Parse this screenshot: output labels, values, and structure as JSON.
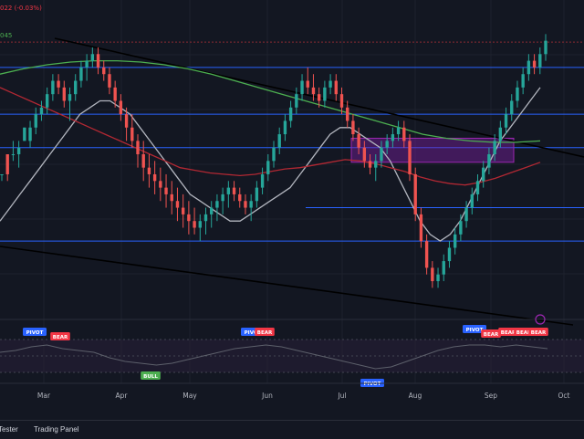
{
  "colors": {
    "background": "#131722",
    "up": "#26a69a",
    "down": "#ef5350",
    "ma_fast": "#b2b5be",
    "ma_mid": "#b22833",
    "ma_slow": "#4caf50",
    "hline": "#2962ff",
    "trendline": "#000000",
    "zone": "#7b1fa2",
    "bull_badge": "#4caf50",
    "bear_badge": "#f23645",
    "pivot_badge": "#2962ff",
    "osc_line": "#5d606b"
  },
  "header": {
    "readout_change": "(-0.03%)",
    "readout_value": "045"
  },
  "footer": {
    "tabs": [
      "Tester",
      "Trading Panel"
    ]
  },
  "chart_data": [
    {
      "type": "candlestick",
      "x_ticks": [
        "Mar",
        "Apr",
        "May",
        "Jun",
        "Jul",
        "Aug",
        "Sep",
        "Oct"
      ],
      "series": [
        {
          "name": "",
          "kind": "candles",
          "values": [
            [
              1,
              1.5,
              1.5,
              1,
              1.5
            ],
            [
              1.5,
              3,
              1,
              3,
              1.5
            ],
            [
              2,
              3,
              4,
              2.5,
              3
            ],
            [
              3,
              3,
              4,
              2,
              3.5
            ],
            [
              4,
              4,
              5,
              4,
              5
            ],
            [
              5,
              4,
              5.5,
              3.5,
              5
            ],
            [
              6,
              5,
              6.5,
              4.5,
              6
            ],
            [
              7,
              6,
              7,
              5.5,
              6.5
            ],
            [
              8,
              6.5,
              8,
              6,
              7.5
            ],
            [
              9,
              7.5,
              9,
              7,
              8.5
            ],
            [
              10,
              8.5,
              9,
              7.5,
              8
            ],
            [
              11,
              8,
              8.5,
              6.5,
              7
            ],
            [
              12,
              7,
              8,
              5.5,
              7.5
            ],
            [
              13,
              7.5,
              9,
              7,
              8.5
            ],
            [
              14,
              8.5,
              10,
              8,
              9.5
            ],
            [
              15,
              9.5,
              10.5,
              8.5,
              10
            ],
            [
              16,
              10,
              11,
              9.5,
              10.5
            ],
            [
              17,
              10.5,
              11,
              9,
              9.5
            ],
            [
              18,
              9.5,
              10,
              8.5,
              9
            ],
            [
              19,
              9,
              9.5,
              7.5,
              8
            ],
            [
              20,
              8,
              8.5,
              6.5,
              7
            ],
            [
              21,
              7,
              7.5,
              5.5,
              6
            ],
            [
              22,
              6,
              6.5,
              4,
              5
            ],
            [
              23,
              5,
              6,
              3.5,
              4
            ],
            [
              24,
              4,
              4.5,
              2,
              3
            ],
            [
              25,
              3,
              4,
              1,
              2
            ],
            [
              26,
              2,
              3,
              0.5,
              1.5
            ],
            [
              27,
              1.5,
              2.5,
              0,
              1
            ],
            [
              28,
              1,
              2,
              -0.5,
              0.5
            ],
            [
              29,
              0.5,
              1.5,
              -1,
              0
            ],
            [
              30,
              0,
              1,
              -1.5,
              -0.5
            ],
            [
              31,
              -0.5,
              0.5,
              -2,
              -1
            ],
            [
              32,
              -1,
              0,
              -2.5,
              -1.5
            ],
            [
              33,
              -1.5,
              -0.5,
              -3,
              -2
            ],
            [
              34,
              -2,
              -1,
              -3,
              -2.5
            ],
            [
              35,
              -2.5,
              -1.5,
              -3.5,
              -2
            ],
            [
              36,
              -2,
              -1,
              -3,
              -1.5
            ],
            [
              37,
              -1.5,
              -0.5,
              -2.5,
              -1
            ],
            [
              38,
              -1,
              0,
              -2,
              -0.5
            ],
            [
              39,
              -0.5,
              0.5,
              -1.5,
              0
            ],
            [
              40,
              0,
              1,
              -1,
              0.5
            ],
            [
              41,
              0.5,
              1,
              -0.5,
              0
            ],
            [
              42,
              0,
              0.5,
              -1,
              -0.5
            ],
            [
              43,
              -0.5,
              0,
              -1.5,
              -1
            ],
            [
              44,
              -1,
              0,
              -2,
              -0.5
            ],
            [
              45,
              -0.5,
              1,
              -1,
              0.5
            ],
            [
              46,
              0.5,
              2,
              0,
              1.5
            ],
            [
              47,
              1.5,
              3,
              1,
              2.5
            ],
            [
              48,
              2.5,
              4,
              2,
              3.5
            ],
            [
              49,
              3.5,
              5,
              3,
              4.5
            ],
            [
              50,
              4.5,
              6,
              4,
              5.5
            ],
            [
              51,
              5.5,
              7,
              5,
              6.5
            ],
            [
              52,
              6.5,
              8,
              6,
              7.5
            ],
            [
              53,
              7.5,
              9,
              7,
              8.5
            ],
            [
              54,
              8.5,
              9.5,
              7.5,
              8
            ],
            [
              55,
              8,
              9,
              7,
              7.5
            ],
            [
              56,
              7.5,
              8,
              6.5,
              7
            ],
            [
              57,
              7,
              8.5,
              6.5,
              8
            ],
            [
              58,
              8,
              9,
              7.5,
              8.5
            ],
            [
              59,
              8.5,
              9,
              7,
              7.5
            ],
            [
              60,
              7.5,
              8,
              6,
              6.5
            ],
            [
              61,
              6.5,
              7,
              5,
              5.5
            ],
            [
              62,
              5.5,
              6,
              4,
              4.5
            ],
            [
              63,
              4.5,
              5,
              3,
              3.5
            ],
            [
              64,
              3.5,
              4,
              2,
              2.5
            ],
            [
              65,
              2.5,
              3,
              1.5,
              2
            ],
            [
              66,
              2,
              3,
              1,
              2.5
            ],
            [
              67,
              2.5,
              4,
              2,
              3.5
            ],
            [
              68,
              3.5,
              4.5,
              3,
              4
            ],
            [
              69,
              4,
              5,
              3.5,
              4.5
            ],
            [
              70,
              4.5,
              5.5,
              4,
              5
            ],
            [
              71,
              5,
              5.5,
              3.5,
              4
            ],
            [
              72,
              4,
              4.5,
              1,
              1.5
            ],
            [
              73,
              1.5,
              2,
              -2,
              -1.5
            ],
            [
              74,
              -1.5,
              -1,
              -4,
              -3.5
            ],
            [
              75,
              -3.5,
              -3,
              -6,
              -5.5
            ],
            [
              76,
              -5.5,
              -5,
              -7,
              -6.5
            ],
            [
              77,
              -6.5,
              -5.5,
              -7,
              -6
            ],
            [
              78,
              -6,
              -4.5,
              -6.5,
              -5
            ],
            [
              79,
              -5,
              -3.5,
              -5.5,
              -4
            ],
            [
              80,
              -4,
              -2.5,
              -4.5,
              -3
            ],
            [
              81,
              -3,
              -1.5,
              -3.5,
              -2
            ],
            [
              82,
              -2,
              -0.5,
              -2.5,
              -1
            ],
            [
              83,
              -1,
              0.5,
              -1.5,
              0
            ],
            [
              84,
              0,
              1.5,
              -0.5,
              1
            ],
            [
              85,
              1,
              2.5,
              0.5,
              2
            ],
            [
              86,
              2,
              3.5,
              1.5,
              3
            ],
            [
              87,
              3,
              4.5,
              2.5,
              4
            ],
            [
              88,
              4,
              5.5,
              3.5,
              5
            ],
            [
              89,
              5,
              6.5,
              4.5,
              6
            ],
            [
              90,
              6,
              7.5,
              5.5,
              7
            ],
            [
              91,
              7,
              8.5,
              6.5,
              8
            ],
            [
              92,
              8,
              9.5,
              7.5,
              9
            ],
            [
              93,
              9,
              10.5,
              8.5,
              10
            ],
            [
              94,
              10,
              10.5,
              9,
              9.5
            ],
            [
              95,
              9.5,
              11,
              9,
              10.5
            ],
            [
              96,
              10.5,
              12,
              10,
              11.5
            ]
          ]
        },
        {
          "name": "",
          "kind": "line",
          "color_key": "ma_fast",
          "values": [
            -2,
            -1,
            0,
            1,
            2,
            3,
            4,
            5,
            6,
            6.5,
            7,
            7,
            6.5,
            6,
            5,
            4,
            3,
            2,
            1,
            0,
            -0.5,
            -1,
            -1.5,
            -2,
            -2,
            -1.5,
            -1,
            -0.5,
            0,
            0.5,
            1.5,
            2.5,
            3.5,
            4.5,
            5,
            5,
            4.5,
            4,
            3.5,
            2.5,
            1,
            -0.5,
            -2,
            -3,
            -3.5,
            -3,
            -2,
            -0.5,
            1,
            2.5,
            4,
            5,
            6,
            7,
            8
          ]
        },
        {
          "name": "",
          "kind": "line",
          "color_key": "ma_mid",
          "values": [
            8,
            7.5,
            7,
            6.5,
            6,
            5.5,
            5,
            4.5,
            4,
            3.5,
            3,
            2.5,
            2,
            1.8,
            1.6,
            1.5,
            1.4,
            1.5,
            1.7,
            1.9,
            2,
            2.2,
            2.4,
            2.6,
            2.5,
            2.3,
            2,
            1.7,
            1.3,
            1,
            0.8,
            0.7,
            0.9,
            1.2,
            1.6,
            2,
            2.4
          ]
        },
        {
          "name": "",
          "kind": "line",
          "color_key": "ma_slow",
          "values": [
            9,
            9.4,
            9.7,
            9.9,
            10,
            10,
            9.9,
            9.7,
            9.4,
            9,
            8.5,
            8,
            7.5,
            7,
            6.5,
            6,
            5.5,
            5,
            4.5,
            4.2,
            4,
            3.9,
            3.9,
            4
          ]
        }
      ],
      "levels": [
        9.5,
        6,
        -1,
        -3.5,
        3.5,
        11.4
      ],
      "zone": {
        "y_top": 4.2,
        "y_bottom": 2.4
      }
    },
    {
      "type": "line",
      "series": [
        {
          "name": "",
          "values": [
            0.2,
            0.3,
            0.5,
            0.6,
            0.4,
            0.3,
            0.2,
            -0.1,
            -0.3,
            -0.4,
            -0.5,
            -0.4,
            -0.2,
            0,
            0.2,
            0.4,
            0.5,
            0.6,
            0.5,
            0.3,
            0.1,
            -0.1,
            -0.3,
            -0.5,
            -0.7,
            -0.6,
            -0.3,
            0,
            0.3,
            0.5,
            0.6,
            0.6,
            0.5,
            0.6,
            0.5,
            0.4
          ]
        }
      ],
      "annotations": [
        {
          "text": "PIVOT",
          "kind": "pivot"
        },
        {
          "text": "BEAR",
          "kind": "bear"
        },
        {
          "text": "BULL",
          "kind": "bull"
        },
        {
          "text": "PIVOT",
          "kind": "pivot"
        },
        {
          "text": "BEAR",
          "kind": "bear"
        },
        {
          "text": "PIVOT",
          "kind": "pivot"
        },
        {
          "text": "PIVOT",
          "kind": "pivot"
        },
        {
          "text": "BEAR",
          "kind": "bear"
        },
        {
          "text": "BEAR",
          "kind": "bear"
        },
        {
          "text": "BEAR",
          "kind": "bear"
        },
        {
          "text": "BEAR",
          "kind": "bear"
        }
      ]
    }
  ]
}
